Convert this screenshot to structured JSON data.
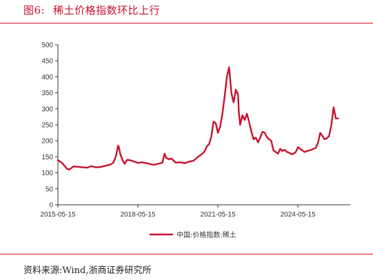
{
  "figure": {
    "label": "图6:",
    "title": "稀土价格指数环比上行",
    "source": "资料来源:Wind,浙商证券研究所"
  },
  "colors": {
    "accent": "#c8102e",
    "series": "#c8102e",
    "axis": "#333333"
  },
  "chart_data": {
    "type": "line",
    "title": "",
    "xlabel": "",
    "ylabel": "",
    "ylim": [
      0,
      500
    ],
    "yticks": [
      0,
      50,
      100,
      150,
      200,
      250,
      300,
      350,
      400,
      450,
      500
    ],
    "xtick_labels": [
      "2015-05-15",
      "2018-05-15",
      "2021-05-15",
      "2024-05-15"
    ],
    "xlim": [
      "2015-05-15",
      "2026-05-01"
    ],
    "grid": false,
    "legend": "bottom-center",
    "series": [
      {
        "name": "中国:价格指数:稀土",
        "color": "#c8102e",
        "x": [
          "2015-05-15",
          "2015-07-15",
          "2015-09-15",
          "2015-10-15",
          "2015-12-15",
          "2016-03-15",
          "2016-06-15",
          "2016-08-15",
          "2016-10-15",
          "2016-12-15",
          "2017-03-15",
          "2017-05-15",
          "2017-06-15",
          "2017-07-15",
          "2017-08-15",
          "2017-08-25",
          "2017-09-15",
          "2017-10-15",
          "2017-11-15",
          "2017-12-15",
          "2018-01-15",
          "2018-03-15",
          "2018-05-15",
          "2018-07-15",
          "2018-09-15",
          "2018-12-15",
          "2019-02-15",
          "2019-04-15",
          "2019-05-15",
          "2019-06-10",
          "2019-06-25",
          "2019-07-15",
          "2019-08-15",
          "2019-10-15",
          "2019-12-15",
          "2020-02-15",
          "2020-04-15",
          "2020-06-15",
          "2020-08-15",
          "2020-10-15",
          "2020-11-15",
          "2020-12-15",
          "2021-01-15",
          "2021-02-15",
          "2021-03-15",
          "2021-04-15",
          "2021-05-15",
          "2021-06-15",
          "2021-07-15",
          "2021-08-15",
          "2021-09-15",
          "2021-10-15",
          "2021-11-15",
          "2021-12-15",
          "2022-01-15",
          "2022-02-15",
          "2022-02-25",
          "2022-03-15",
          "2022-04-15",
          "2022-05-15",
          "2022-06-15",
          "2022-07-15",
          "2022-08-15",
          "2022-09-15",
          "2022-10-15",
          "2022-11-15",
          "2022-12-15",
          "2023-01-15",
          "2023-02-15",
          "2023-03-15",
          "2023-04-15",
          "2023-05-15",
          "2023-06-15",
          "2023-07-15",
          "2023-08-15",
          "2023-09-15",
          "2023-10-15",
          "2023-11-15",
          "2023-12-15",
          "2024-01-15",
          "2024-02-15",
          "2024-03-15",
          "2024-04-15",
          "2024-05-15",
          "2024-06-15",
          "2024-07-15",
          "2024-08-15",
          "2024-09-15",
          "2024-10-15",
          "2024-11-15",
          "2024-12-15",
          "2025-01-15",
          "2025-02-15",
          "2025-03-15",
          "2025-04-15",
          "2025-05-15",
          "2025-06-15",
          "2025-07-15",
          "2025-08-15",
          "2025-09-15",
          "2025-10-15",
          "2025-11-15"
        ],
        "values": [
          140,
          130,
          113,
          110,
          120,
          118,
          116,
          121,
          117,
          118,
          123,
          127,
          133,
          150,
          185,
          182,
          160,
          140,
          128,
          140,
          140,
          136,
          131,
          133,
          130,
          125,
          128,
          132,
          160,
          145,
          145,
          142,
          145,
          132,
          133,
          130,
          135,
          138,
          150,
          160,
          168,
          183,
          190,
          215,
          260,
          255,
          225,
          245,
          285,
          340,
          400,
          430,
          350,
          320,
          360,
          345,
          290,
          250,
          280,
          265,
          285,
          260,
          230,
          205,
          210,
          195,
          210,
          228,
          225,
          212,
          205,
          200,
          170,
          165,
          160,
          175,
          168,
          172,
          165,
          163,
          158,
          160,
          165,
          180,
          175,
          170,
          165,
          168,
          170,
          172,
          175,
          178,
          195,
          225,
          215,
          205,
          208,
          215,
          250,
          305,
          270,
          270
        ]
      }
    ]
  },
  "legend": {
    "label": "中国:价格指数:稀土"
  }
}
